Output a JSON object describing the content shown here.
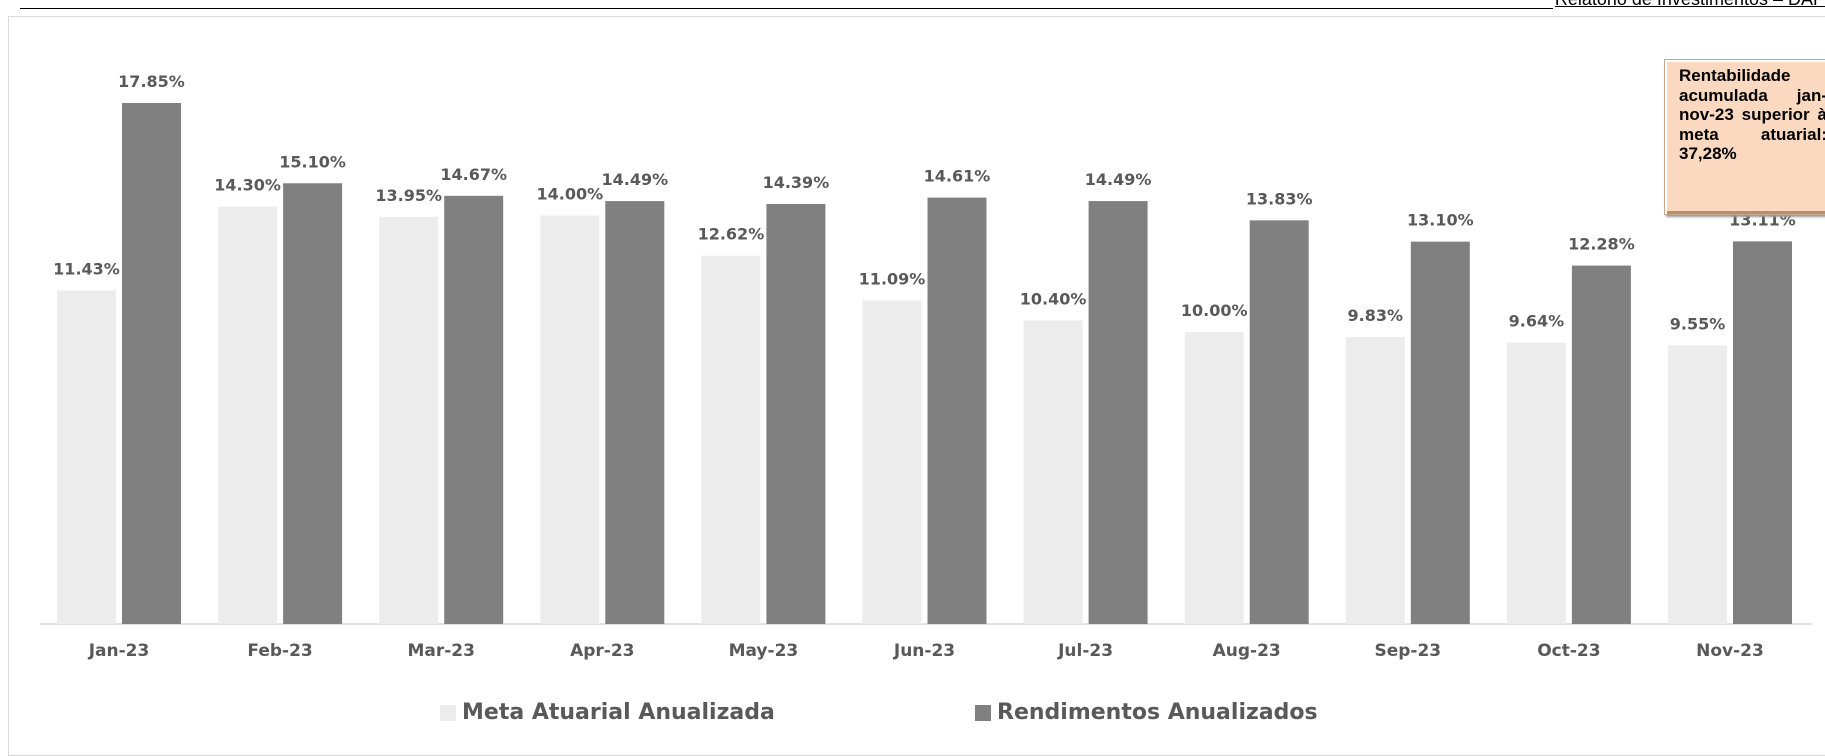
{
  "header": {
    "report_title": "Relatório de Investimentos – DAP"
  },
  "callout": {
    "text": "Rentabilidade acumulada jan-nov-23 superior à meta atuarial: 37,28%"
  },
  "colors": {
    "meta": "#ececec",
    "rendimentos": "#808080",
    "axis": "#d9d9d9",
    "label": "#595959"
  },
  "chart_data": {
    "type": "bar",
    "categories": [
      "Jan-23",
      "Feb-23",
      "Mar-23",
      "Apr-23",
      "May-23",
      "Jun-23",
      "Jul-23",
      "Aug-23",
      "Sep-23",
      "Oct-23",
      "Nov-23"
    ],
    "series": [
      {
        "name": "Meta Atuarial Anualizada",
        "values": [
          11.43,
          14.3,
          13.95,
          14.0,
          12.62,
          11.09,
          10.4,
          10.0,
          9.83,
          9.64,
          9.55
        ],
        "labels": [
          "11.43%",
          "14.30%",
          "13.95%",
          "14.00%",
          "12.62%",
          "11.09%",
          "10.40%",
          "10.00%",
          "9.83%",
          "9.64%",
          "9.55%"
        ]
      },
      {
        "name": "Rendimentos Anualizados",
        "values": [
          17.85,
          15.1,
          14.67,
          14.49,
          14.39,
          14.61,
          14.49,
          13.83,
          13.1,
          12.28,
          13.11
        ],
        "labels": [
          "17.85%",
          "15.10%",
          "14.67%",
          "14.49%",
          "14.39%",
          "14.61%",
          "14.49%",
          "13.83%",
          "13.10%",
          "12.28%",
          "13.11%"
        ]
      }
    ],
    "ylim": [
      0,
      20
    ],
    "grid": false,
    "legend_position": "bottom"
  }
}
